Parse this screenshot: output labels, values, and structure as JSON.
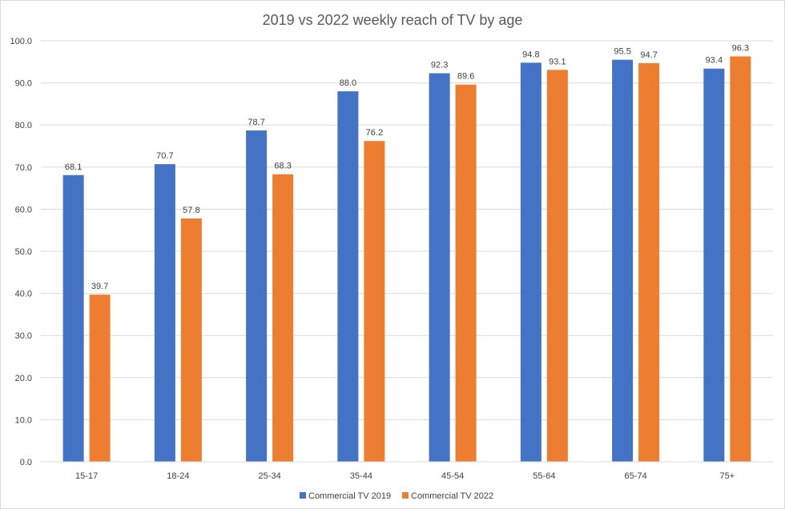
{
  "chart_data": {
    "type": "bar",
    "title": "2019 vs 2022 weekly reach of TV by age",
    "xlabel": "",
    "ylabel": "",
    "categories": [
      "15-17",
      "18-24",
      "25-34",
      "35-44",
      "45-54",
      "55-64",
      "65-74",
      "75+"
    ],
    "series": [
      {
        "name": "Commercial TV 2019",
        "color": "#4472C4",
        "values": [
          68.1,
          70.7,
          78.7,
          88.0,
          92.3,
          94.8,
          95.5,
          93.4
        ],
        "labels": [
          "68.1",
          "70.7",
          "78.7",
          "88.0",
          "92.3",
          "94.8",
          "95.5",
          "93.4"
        ]
      },
      {
        "name": "Commercial TV 2022",
        "color": "#ED7D31",
        "values": [
          39.7,
          57.8,
          68.3,
          76.2,
          89.6,
          93.1,
          94.7,
          96.3
        ],
        "labels": [
          "39.7",
          "57.8",
          "68.3",
          "76.2",
          "89.6",
          "93.1",
          "94.7",
          "96.3"
        ]
      }
    ],
    "ylim": [
      0,
      100
    ],
    "yticks": [
      "0.0",
      "10.0",
      "20.0",
      "30.0",
      "40.0",
      "50.0",
      "60.0",
      "70.0",
      "80.0",
      "90.0",
      "100.0"
    ],
    "grid": true,
    "legend_position": "bottom"
  }
}
